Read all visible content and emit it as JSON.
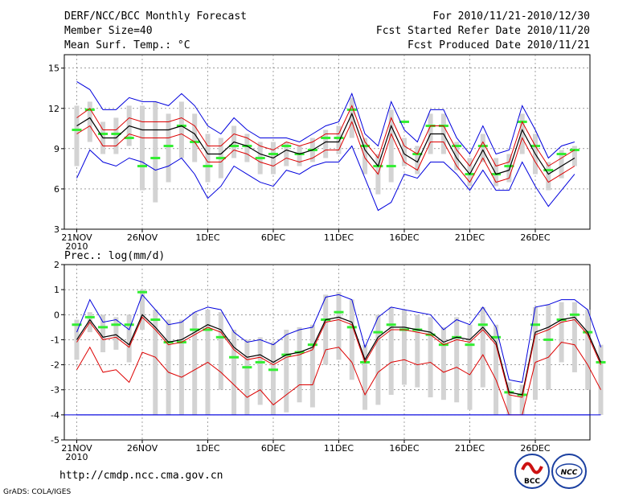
{
  "header": {
    "title": "DERF/NCC/BCC Monthly Forecast",
    "member_size": "Member Size=40",
    "period": "For 2010/11/21-2010/12/30",
    "fcst_started": "Fcst Started Refer Date 2010/11/20",
    "fcst_produced": "Fcst Produced Date 2010/11/21"
  },
  "footer": {
    "url": "http://cmdp.ncc.cma.gov.cn",
    "grads_credit": "GrADS: COLA/IGES",
    "bcc_logo_text": "BCC",
    "ncc_logo_text": "NCC"
  },
  "colors": {
    "bar": "#d3d3d3",
    "green": "#33ee33",
    "red": "#dd0000",
    "blue": "#0000dd",
    "black": "#000000",
    "grid": "#666666"
  },
  "chart_data": [
    {
      "type": "line",
      "title": "Mean Surf. Temp.: °C",
      "x_tick_labels": [
        "21NOV",
        "26NOV",
        "1DEC",
        "6DEC",
        "11DEC",
        "16DEC",
        "21DEC",
        "26DEC"
      ],
      "x_tick_days": [
        1,
        6,
        11,
        16,
        21,
        26,
        31,
        36
      ],
      "x_year_label": "2010",
      "xlim": [
        0,
        40
      ],
      "ylim": [
        3,
        16
      ],
      "y_ticks": [
        3,
        6,
        9,
        12,
        15
      ],
      "series": [
        {
          "name": "ensemble mean",
          "color": "black",
          "values": [
            10.7,
            11.3,
            9.8,
            9.8,
            10.7,
            10.4,
            10.4,
            10.4,
            10.7,
            10.1,
            8.6,
            8.6,
            9.5,
            9.2,
            8.6,
            8.3,
            8.9,
            8.6,
            8.9,
            9.5,
            9.5,
            11.6,
            8.9,
            7.7,
            10.7,
            8.6,
            8.0,
            10.1,
            10.1,
            8.3,
            7.1,
            8.9,
            7.1,
            7.4,
            10.4,
            8.6,
            7.1,
            7.7,
            8.3
          ]
        },
        {
          "name": "upper spread",
          "color": "red",
          "values": [
            11.3,
            12.0,
            10.4,
            10.4,
            11.3,
            11.0,
            11.0,
            11.0,
            11.3,
            10.7,
            9.2,
            9.2,
            10.1,
            9.8,
            9.2,
            8.9,
            9.5,
            9.2,
            9.5,
            10.1,
            10.1,
            12.2,
            9.5,
            8.3,
            11.3,
            9.2,
            8.6,
            10.7,
            10.7,
            8.9,
            7.7,
            9.5,
            7.7,
            8.0,
            11.0,
            9.2,
            7.7,
            8.3,
            8.9
          ]
        },
        {
          "name": "lower spread",
          "color": "red",
          "values": [
            10.1,
            10.7,
            9.2,
            9.2,
            10.1,
            9.8,
            9.8,
            9.8,
            10.1,
            9.5,
            8.0,
            8.0,
            8.9,
            8.6,
            8.0,
            7.7,
            8.3,
            8.0,
            8.3,
            8.9,
            8.9,
            11.0,
            8.3,
            7.1,
            10.1,
            8.0,
            7.4,
            9.5,
            9.5,
            7.7,
            6.5,
            8.3,
            6.5,
            6.8,
            9.8,
            8.0,
            6.5,
            7.1,
            7.7
          ]
        },
        {
          "name": "member max",
          "color": "blue",
          "values": [
            14.0,
            13.4,
            11.9,
            11.9,
            12.8,
            12.5,
            12.5,
            12.2,
            13.1,
            12.2,
            10.7,
            10.1,
            11.3,
            10.4,
            9.8,
            9.8,
            9.8,
            9.5,
            10.1,
            10.7,
            11.0,
            13.1,
            10.1,
            9.2,
            12.5,
            10.4,
            9.5,
            11.9,
            11.9,
            9.8,
            8.6,
            10.7,
            8.6,
            8.9,
            12.2,
            10.4,
            8.3,
            9.2,
            9.5
          ]
        },
        {
          "name": "member min",
          "color": "blue",
          "values": [
            6.8,
            8.9,
            8.0,
            7.7,
            8.3,
            8.0,
            7.4,
            7.7,
            8.3,
            7.1,
            5.3,
            6.2,
            7.7,
            7.1,
            6.5,
            6.2,
            7.4,
            7.1,
            7.7,
            8.0,
            8.0,
            9.2,
            6.8,
            4.4,
            5.0,
            7.1,
            6.8,
            8.0,
            8.0,
            7.1,
            5.9,
            7.4,
            5.9,
            5.9,
            8.0,
            6.2,
            4.7,
            5.9,
            7.1
          ]
        },
        {
          "name": "green marker",
          "color": "green",
          "values": [
            10.4,
            11.9,
            10.1,
            10.1,
            9.8,
            7.7,
            8.3,
            9.2,
            10.7,
            9.5,
            7.7,
            8.3,
            9.2,
            9.2,
            8.3,
            8.6,
            9.2,
            8.6,
            8.9,
            9.8,
            9.8,
            11.9,
            9.2,
            7.7,
            7.7,
            11.0,
            8.6,
            10.7,
            10.7,
            9.2,
            7.1,
            9.2,
            7.1,
            7.7,
            11.0,
            9.2,
            7.4,
            8.6,
            8.9
          ]
        }
      ],
      "bars": {
        "name": "range bars",
        "low": [
          7.7,
          9.5,
          8.6,
          8.6,
          9.2,
          5.9,
          5.0,
          6.5,
          8.3,
          8.0,
          6.5,
          6.8,
          8.3,
          8.0,
          7.1,
          7.1,
          7.7,
          7.7,
          8.0,
          8.3,
          8.6,
          9.8,
          7.1,
          5.6,
          6.5,
          7.7,
          7.1,
          8.6,
          8.6,
          7.4,
          6.2,
          8.0,
          6.2,
          6.5,
          8.6,
          7.1,
          5.9,
          6.8,
          7.7
        ],
        "high": [
          12.2,
          12.5,
          11.0,
          11.3,
          12.2,
          12.2,
          12.5,
          11.6,
          12.5,
          11.6,
          10.1,
          9.8,
          10.7,
          10.1,
          9.5,
          9.5,
          9.5,
          9.2,
          9.8,
          10.4,
          10.7,
          12.8,
          9.8,
          8.6,
          11.9,
          9.8,
          9.2,
          11.6,
          11.6,
          9.5,
          8.3,
          10.1,
          8.3,
          8.6,
          11.6,
          10.1,
          8.0,
          8.9,
          9.2
        ]
      }
    },
    {
      "type": "line",
      "title": "Prec.: log(mm/d)",
      "x_tick_labels": [
        "21NOV",
        "26NOV",
        "1DEC",
        "6DEC",
        "11DEC",
        "16DEC",
        "21DEC",
        "26DEC"
      ],
      "x_tick_days": [
        1,
        6,
        11,
        16,
        21,
        26,
        31,
        36
      ],
      "x_year_label": "2010",
      "xlim": [
        0,
        40
      ],
      "ylim": [
        -5,
        2
      ],
      "y_ticks": [
        -5,
        -4,
        -3,
        -2,
        -1,
        0,
        1,
        2
      ],
      "baseline": -4,
      "series": [
        {
          "name": "ensemble mean",
          "color": "black",
          "values": [
            -1.0,
            -0.2,
            -0.9,
            -0.8,
            -1.2,
            0.0,
            -0.5,
            -1.1,
            -1.0,
            -0.7,
            -0.4,
            -0.6,
            -1.3,
            -1.7,
            -1.6,
            -1.9,
            -1.6,
            -1.5,
            -1.3,
            -0.2,
            -0.1,
            -0.3,
            -1.8,
            -0.9,
            -0.5,
            -0.5,
            -0.6,
            -0.7,
            -1.1,
            -0.9,
            -1.0,
            -0.5,
            -1.1,
            -3.1,
            -3.2,
            -0.7,
            -0.5,
            -0.2,
            -0.1,
            -0.7,
            -1.9
          ]
        },
        {
          "name": "upper spread",
          "color": "red",
          "values": [
            -1.1,
            -0.3,
            -1.0,
            -0.9,
            -1.3,
            -0.1,
            -0.6,
            -1.2,
            -1.1,
            -0.8,
            -0.5,
            -0.7,
            -1.4,
            -1.8,
            -1.7,
            -2.0,
            -1.7,
            -1.6,
            -1.4,
            -0.3,
            -0.2,
            -0.4,
            -1.9,
            -1.0,
            -0.6,
            -0.6,
            -0.7,
            -0.8,
            -1.2,
            -1.0,
            -1.1,
            -0.6,
            -1.2,
            -3.2,
            -3.3,
            -0.8,
            -0.6,
            -0.3,
            -0.2,
            -0.8,
            -2.0
          ]
        },
        {
          "name": "lower spread",
          "color": "red",
          "values": [
            -2.2,
            -1.3,
            -2.3,
            -2.2,
            -2.7,
            -1.5,
            -1.7,
            -2.3,
            -2.5,
            -2.2,
            -1.9,
            -2.3,
            -2.8,
            -3.3,
            -3.0,
            -3.6,
            -3.2,
            -2.8,
            -2.8,
            -1.4,
            -1.3,
            -1.9,
            -3.2,
            -2.3,
            -1.9,
            -1.8,
            -2.0,
            -1.9,
            -2.3,
            -2.1,
            -2.4,
            -1.6,
            -2.6,
            -4.0,
            -4.0,
            -1.9,
            -1.7,
            -1.1,
            -1.2,
            -2.0,
            -3.0
          ]
        },
        {
          "name": "member max",
          "color": "blue",
          "values": [
            -0.7,
            0.6,
            -0.3,
            -0.2,
            -0.6,
            0.8,
            0.2,
            -0.4,
            -0.3,
            0.1,
            0.3,
            0.2,
            -0.7,
            -1.1,
            -1.0,
            -1.2,
            -0.8,
            -0.6,
            -0.5,
            0.7,
            0.8,
            0.6,
            -1.3,
            -0.1,
            0.3,
            0.2,
            0.1,
            0.0,
            -0.6,
            -0.2,
            -0.4,
            0.3,
            -0.5,
            -2.6,
            -2.7,
            0.3,
            0.4,
            0.6,
            0.6,
            0.2,
            -1.3
          ]
        },
        {
          "name": "member min",
          "color": "blue",
          "values": [
            -4.0,
            -4.0,
            -4.0,
            -4.0,
            -4.0,
            -4.0,
            -4.0,
            -4.0,
            -4.0,
            -4.0,
            -4.0,
            -4.0,
            -4.0,
            -4.0,
            -4.0,
            -4.0,
            -4.0,
            -4.0,
            -4.0,
            -4.0,
            -4.0,
            -4.0,
            -4.0,
            -4.0,
            -4.0,
            -4.0,
            -4.0,
            -4.0,
            -4.0,
            -4.0,
            -4.0,
            -4.0,
            -4.0,
            -4.0,
            -4.0,
            -4.0,
            -4.0,
            -4.0,
            -4.0,
            -4.0,
            -4.0
          ]
        },
        {
          "name": "green marker",
          "color": "green",
          "values": [
            -0.4,
            -0.1,
            -0.5,
            -0.4,
            -0.4,
            0.9,
            -0.2,
            -1.1,
            -1.1,
            -0.6,
            -0.6,
            -0.9,
            -1.7,
            -2.1,
            -1.9,
            -2.2,
            -1.6,
            -1.5,
            -1.2,
            -0.2,
            0.1,
            -0.5,
            -1.9,
            -0.7,
            -0.4,
            -0.6,
            -0.6,
            -0.8,
            -1.2,
            -0.9,
            -1.2,
            -0.4,
            -0.9,
            -3.1,
            -3.2,
            -0.4,
            -1.0,
            -0.2,
            0.0,
            -0.7,
            -1.9
          ]
        }
      ],
      "bars": {
        "name": "range bars",
        "low": [
          -1.8,
          -0.7,
          -1.5,
          -1.4,
          -1.9,
          -0.6,
          -4.0,
          -4.0,
          -4.0,
          -4.0,
          -4.0,
          -3.0,
          -4.0,
          -4.0,
          -3.6,
          -4.0,
          -3.9,
          -3.5,
          -3.7,
          -2.0,
          -1.8,
          -2.6,
          -3.8,
          -3.6,
          -3.2,
          -2.8,
          -2.9,
          -3.3,
          -3.4,
          -3.5,
          -3.8,
          -2.9,
          -4.0,
          -4.0,
          -4.0,
          -3.4,
          -3.0,
          -1.9,
          -2.3,
          -3.0,
          -4.0
        ],
        "high": [
          -0.2,
          0.1,
          0.0,
          -0.1,
          0.0,
          1.0,
          0.2,
          -0.2,
          -0.2,
          0.1,
          0.2,
          0.1,
          -0.6,
          -1.0,
          -0.9,
          -1.1,
          -0.6,
          -0.5,
          -0.4,
          0.8,
          0.9,
          0.6,
          -1.2,
          0.0,
          0.3,
          0.2,
          0.0,
          -0.1,
          -0.5,
          -0.1,
          -0.4,
          0.3,
          -0.4,
          -2.7,
          -2.8,
          0.3,
          0.4,
          0.5,
          0.5,
          0.2,
          -1.2
        ]
      }
    }
  ]
}
